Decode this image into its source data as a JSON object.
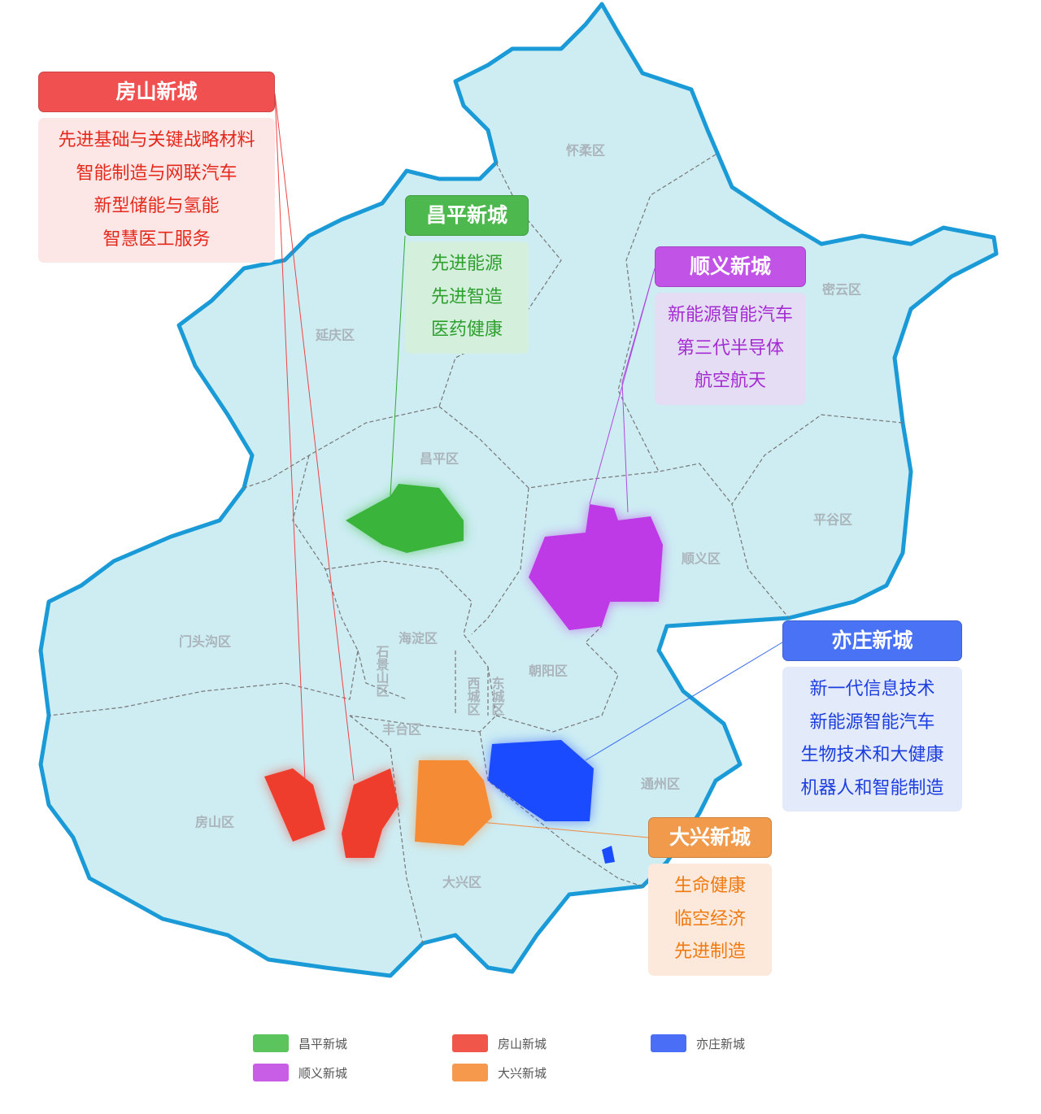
{
  "districts": [
    "怀柔区",
    "密云区",
    "延庆区",
    "昌平区",
    "顺义区",
    "平谷区",
    "门头沟区",
    "海淀区",
    "朝阳区",
    "石景山区",
    "西城区",
    "东城区",
    "丰台区",
    "通州区",
    "房山区",
    "大兴区"
  ],
  "new_cities": [
    {
      "title": "房山新城",
      "industries": [
        "先进基础与关键战略材料",
        "智能制造与网联汽车",
        "新型储能与氢能",
        "智慧医工服务"
      ]
    },
    {
      "title": "昌平新城",
      "industries": [
        "先进能源",
        "先进智造",
        "医药健康"
      ]
    },
    {
      "title": "顺义新城",
      "industries": [
        "新能源智能汽车",
        "第三代半导体",
        "航空航天"
      ]
    },
    {
      "title": "亦庄新城",
      "industries": [
        "新一代信息技术",
        "新能源智能汽车",
        "生物技术和大健康",
        "机器人和智能制造"
      ]
    },
    {
      "title": "大兴新城",
      "industries": [
        "生命健康",
        "临空经济",
        "先进制造"
      ]
    }
  ],
  "legend": [
    "昌平新城",
    "房山新城",
    "亦庄新城",
    "顺义新城",
    "大兴新城"
  ]
}
